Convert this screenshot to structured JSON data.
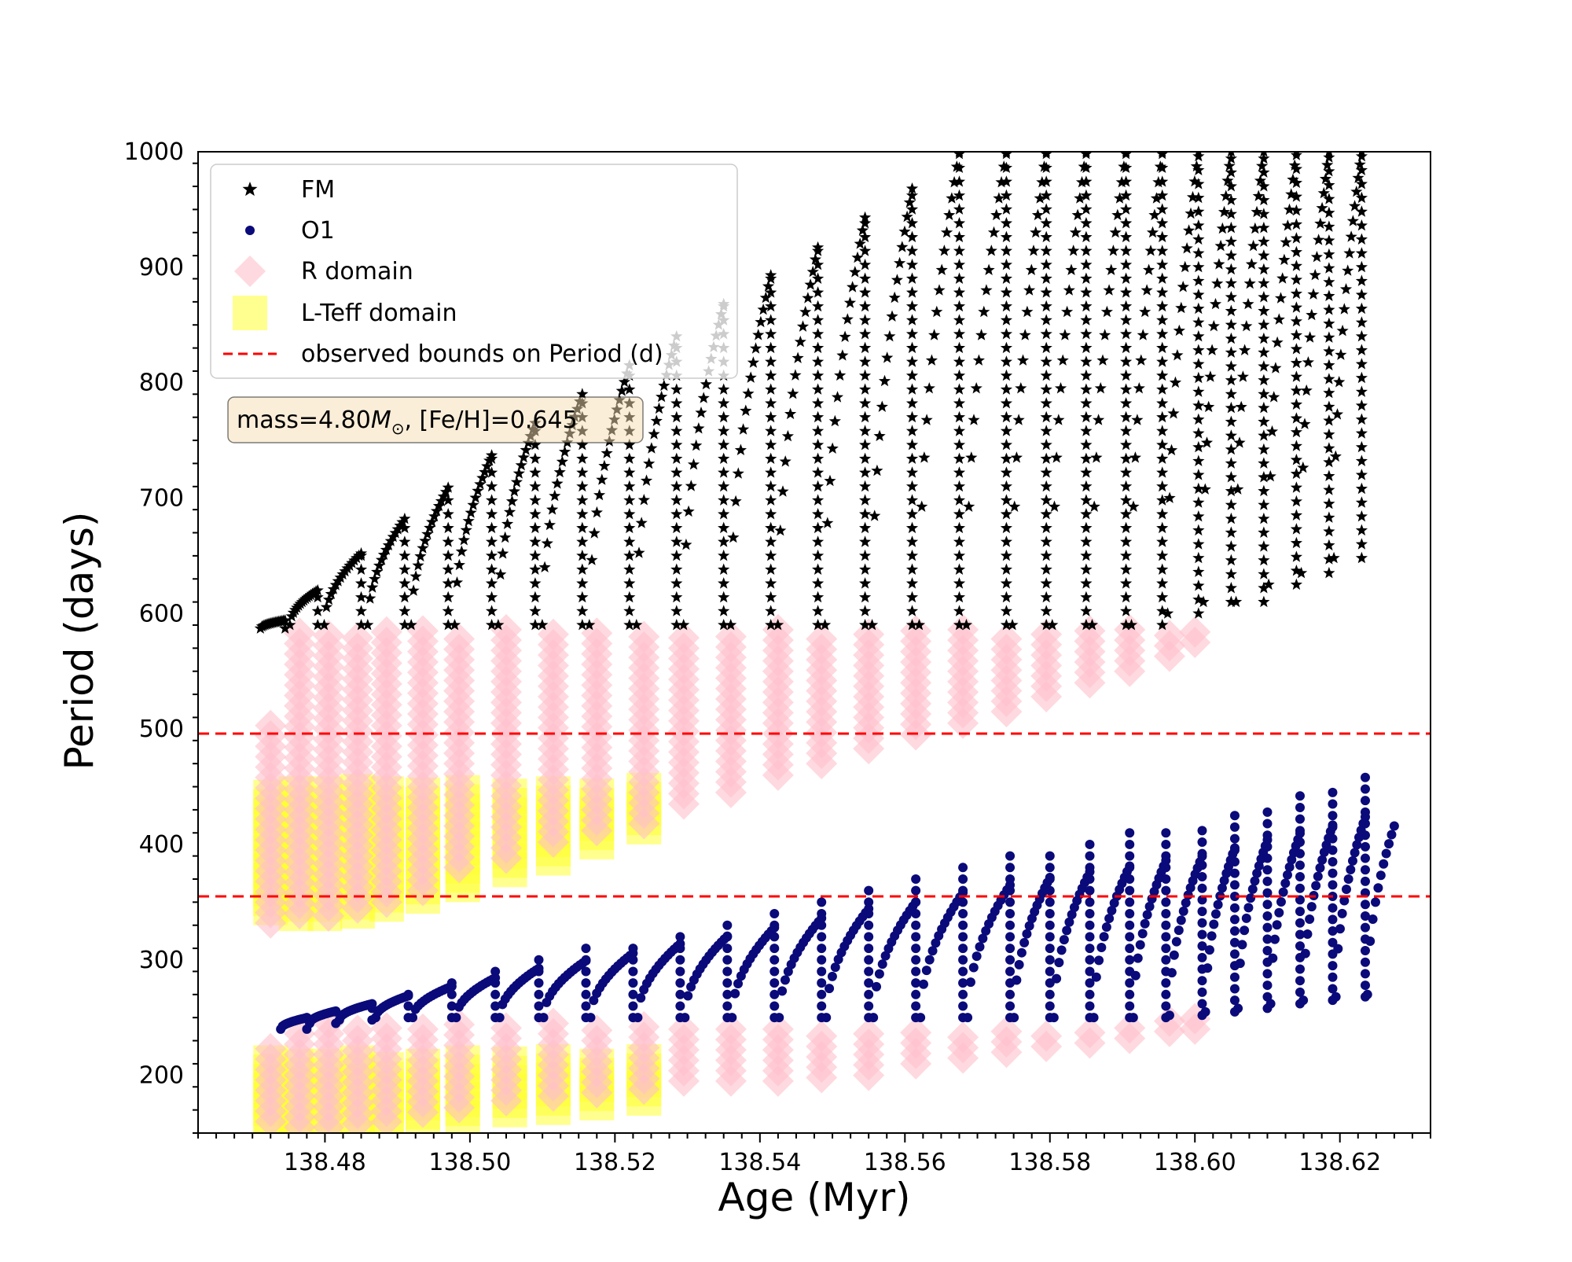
{
  "chart_data": {
    "type": "scatter",
    "title": "",
    "xlabel": "Age (Myr)",
    "ylabel": "Period (days)",
    "xlim": [
      138.4625,
      138.6325
    ],
    "ylim": [
      150,
      1000
    ],
    "xticks": [
      "138.48",
      "138.50",
      "138.52",
      "138.54",
      "138.56",
      "138.58",
      "138.60",
      "138.62"
    ],
    "yticks": [
      "200",
      "300",
      "400",
      "500",
      "600",
      "700",
      "800",
      "900",
      "1000"
    ],
    "grid": false,
    "legend": {
      "placement": "top-left",
      "entries": [
        {
          "label": "FM",
          "marker": "star",
          "color": "#000000"
        },
        {
          "label": "O1",
          "marker": "circle",
          "color": "#0a0a7a"
        },
        {
          "label": "R domain",
          "marker": "diamond",
          "color": "#ffc0cb"
        },
        {
          "label": "L-Teff domain",
          "marker": "square",
          "color": "#ffff33"
        },
        {
          "label": "observed bounds on Period (d)",
          "marker": "dashed-line",
          "color": "#ff0000"
        }
      ]
    },
    "annotation": {
      "text_before": "mass=4.80",
      "symbol": "M",
      "subscript": "⊙",
      "text_after": ", [Fe/H]=0.645"
    },
    "observed_bounds": [
      355,
      496
    ],
    "series": [
      {
        "name": "FM",
        "color": "#000000",
        "pulses": [
          {
            "age": 138.4745,
            "low": 587,
            "high": 594
          },
          {
            "age": 138.479,
            "low": 590,
            "high": 620
          },
          {
            "age": 138.485,
            "low": 590,
            "high": 652
          },
          {
            "age": 138.491,
            "low": 590,
            "high": 682
          },
          {
            "age": 138.497,
            "low": 590,
            "high": 709
          },
          {
            "age": 138.503,
            "low": 590,
            "high": 737
          },
          {
            "age": 138.509,
            "low": 590,
            "high": 765
          },
          {
            "age": 138.5155,
            "low": 590,
            "high": 790
          },
          {
            "age": 138.522,
            "low": 590,
            "high": 815
          },
          {
            "age": 138.5285,
            "low": 590,
            "high": 840
          },
          {
            "age": 138.535,
            "low": 590,
            "high": 868
          },
          {
            "age": 138.5415,
            "low": 590,
            "high": 893
          },
          {
            "age": 138.548,
            "low": 590,
            "high": 917
          },
          {
            "age": 138.5545,
            "low": 590,
            "high": 943
          },
          {
            "age": 138.561,
            "low": 590,
            "high": 968
          },
          {
            "age": 138.5675,
            "low": 590,
            "high": 1000
          },
          {
            "age": 138.574,
            "low": 590,
            "high": 1000
          },
          {
            "age": 138.5795,
            "low": 590,
            "high": 1000
          },
          {
            "age": 138.585,
            "low": 590,
            "high": 1000
          },
          {
            "age": 138.5905,
            "low": 590,
            "high": 1000
          },
          {
            "age": 138.5955,
            "low": 590,
            "high": 1000
          },
          {
            "age": 138.6005,
            "low": 600,
            "high": 1000
          },
          {
            "age": 138.605,
            "low": 610,
            "high": 1000
          },
          {
            "age": 138.6095,
            "low": 610,
            "high": 1000
          },
          {
            "age": 138.614,
            "low": 625,
            "high": 1000
          },
          {
            "age": 138.6185,
            "low": 635,
            "high": 1000
          },
          {
            "age": 138.623,
            "low": 648,
            "high": 1000
          }
        ]
      },
      {
        "name": "O1",
        "color": "#0a0a7a",
        "pulses": [
          {
            "age": 138.4775,
            "low": 240,
            "high": 252
          },
          {
            "age": 138.4815,
            "low": 245,
            "high": 258
          },
          {
            "age": 138.4865,
            "low": 248,
            "high": 265
          },
          {
            "age": 138.4915,
            "low": 250,
            "high": 273
          },
          {
            "age": 138.4975,
            "low": 250,
            "high": 283
          },
          {
            "age": 138.5035,
            "low": 250,
            "high": 292
          },
          {
            "age": 138.5095,
            "low": 250,
            "high": 302
          },
          {
            "age": 138.516,
            "low": 250,
            "high": 310
          },
          {
            "age": 138.5225,
            "low": 250,
            "high": 318
          },
          {
            "age": 138.529,
            "low": 250,
            "high": 328
          },
          {
            "age": 138.5355,
            "low": 250,
            "high": 336
          },
          {
            "age": 138.542,
            "low": 250,
            "high": 345
          },
          {
            "age": 138.5485,
            "low": 250,
            "high": 355
          },
          {
            "age": 138.555,
            "low": 250,
            "high": 365
          },
          {
            "age": 138.5615,
            "low": 250,
            "high": 372
          },
          {
            "age": 138.568,
            "low": 250,
            "high": 382
          },
          {
            "age": 138.5745,
            "low": 250,
            "high": 390
          },
          {
            "age": 138.58,
            "low": 250,
            "high": 398
          },
          {
            "age": 138.5855,
            "low": 250,
            "high": 404
          },
          {
            "age": 138.591,
            "low": 250,
            "high": 410
          },
          {
            "age": 138.596,
            "low": 250,
            "high": 416
          },
          {
            "age": 138.601,
            "low": 252,
            "high": 420
          },
          {
            "age": 138.6055,
            "low": 255,
            "high": 428
          },
          {
            "age": 138.61,
            "low": 258,
            "high": 436
          },
          {
            "age": 138.6145,
            "low": 262,
            "high": 442
          },
          {
            "age": 138.619,
            "low": 265,
            "high": 450
          },
          {
            "age": 138.6235,
            "low": 268,
            "high": 458
          }
        ],
        "tail": [
          {
            "age": 138.6238,
            "period": 270
          },
          {
            "age": 138.6275,
            "period": 416
          }
        ]
      },
      {
        "name": "R domain",
        "color": "#ffc0cb",
        "upper_band": [
          {
            "age": 138.4725,
            "low": 332,
            "high": 510
          },
          {
            "age": 138.4765,
            "low": 340,
            "high": 585
          },
          {
            "age": 138.4805,
            "low": 338,
            "high": 587
          },
          {
            "age": 138.4845,
            "low": 345,
            "high": 586
          },
          {
            "age": 138.4885,
            "low": 350,
            "high": 586
          },
          {
            "age": 138.4935,
            "low": 360,
            "high": 586
          },
          {
            "age": 138.4985,
            "low": 380,
            "high": 586
          },
          {
            "age": 138.505,
            "low": 388,
            "high": 586
          },
          {
            "age": 138.5115,
            "low": 402,
            "high": 586
          },
          {
            "age": 138.5175,
            "low": 412,
            "high": 586
          },
          {
            "age": 138.524,
            "low": 418,
            "high": 586
          },
          {
            "age": 138.5295,
            "low": 435,
            "high": 586
          },
          {
            "age": 138.536,
            "low": 445,
            "high": 586
          },
          {
            "age": 138.5425,
            "low": 460,
            "high": 586
          },
          {
            "age": 138.5485,
            "low": 470,
            "high": 586
          },
          {
            "age": 138.555,
            "low": 483,
            "high": 586
          },
          {
            "age": 138.5615,
            "low": 495,
            "high": 586
          },
          {
            "age": 138.568,
            "low": 505,
            "high": 586
          },
          {
            "age": 138.574,
            "low": 515,
            "high": 586
          },
          {
            "age": 138.5795,
            "low": 528,
            "high": 586
          },
          {
            "age": 138.5855,
            "low": 540,
            "high": 586
          },
          {
            "age": 138.591,
            "low": 550,
            "high": 586
          },
          {
            "age": 138.5965,
            "low": 563,
            "high": 586
          },
          {
            "age": 138.6,
            "low": 575,
            "high": 588
          }
        ],
        "lower_band": [
          {
            "age": 138.4725,
            "low": 160,
            "high": 230
          },
          {
            "age": 138.4765,
            "low": 155,
            "high": 244
          },
          {
            "age": 138.4805,
            "low": 155,
            "high": 245
          },
          {
            "age": 138.4845,
            "low": 158,
            "high": 245
          },
          {
            "age": 138.4885,
            "low": 160,
            "high": 245
          },
          {
            "age": 138.4935,
            "low": 168,
            "high": 245
          },
          {
            "age": 138.4985,
            "low": 172,
            "high": 245
          },
          {
            "age": 138.505,
            "low": 178,
            "high": 245
          },
          {
            "age": 138.5115,
            "low": 182,
            "high": 245
          },
          {
            "age": 138.5175,
            "low": 185,
            "high": 245
          },
          {
            "age": 138.524,
            "low": 188,
            "high": 245
          },
          {
            "age": 138.5295,
            "low": 195,
            "high": 244
          },
          {
            "age": 138.536,
            "low": 195,
            "high": 243
          },
          {
            "age": 138.5425,
            "low": 195,
            "high": 242
          },
          {
            "age": 138.5485,
            "low": 198,
            "high": 242
          },
          {
            "age": 138.555,
            "low": 200,
            "high": 241
          },
          {
            "age": 138.5615,
            "low": 210,
            "high": 240
          },
          {
            "age": 138.568,
            "low": 215,
            "high": 240
          },
          {
            "age": 138.574,
            "low": 220,
            "high": 240
          },
          {
            "age": 138.5795,
            "low": 225,
            "high": 240
          },
          {
            "age": 138.5855,
            "low": 228,
            "high": 240
          },
          {
            "age": 138.591,
            "low": 232,
            "high": 242
          },
          {
            "age": 138.5965,
            "low": 238,
            "high": 250
          },
          {
            "age": 138.6,
            "low": 240,
            "high": 252
          }
        ]
      },
      {
        "name": "L-Teff domain",
        "color": "#ffff33",
        "upper_band": [
          {
            "age": 138.4725,
            "low": 345,
            "high": 445
          },
          {
            "age": 138.476,
            "low": 340,
            "high": 448
          },
          {
            "age": 138.48,
            "low": 340,
            "high": 448
          },
          {
            "age": 138.4845,
            "low": 342,
            "high": 448
          },
          {
            "age": 138.4885,
            "low": 348,
            "high": 448
          },
          {
            "age": 138.4935,
            "low": 355,
            "high": 448
          },
          {
            "age": 138.499,
            "low": 365,
            "high": 448
          },
          {
            "age": 138.5055,
            "low": 378,
            "high": 448
          },
          {
            "age": 138.5115,
            "low": 388,
            "high": 448
          },
          {
            "age": 138.5175,
            "low": 402,
            "high": 448
          },
          {
            "age": 138.524,
            "low": 415,
            "high": 448
          }
        ],
        "lower_band": [
          {
            "age": 138.4725,
            "low": 155,
            "high": 212
          },
          {
            "age": 138.476,
            "low": 152,
            "high": 212
          },
          {
            "age": 138.48,
            "low": 152,
            "high": 212
          },
          {
            "age": 138.4845,
            "low": 155,
            "high": 212
          },
          {
            "age": 138.4885,
            "low": 157,
            "high": 212
          },
          {
            "age": 138.4935,
            "low": 160,
            "high": 212
          },
          {
            "age": 138.499,
            "low": 163,
            "high": 212
          },
          {
            "age": 138.5055,
            "low": 170,
            "high": 212
          },
          {
            "age": 138.5115,
            "low": 172,
            "high": 212
          },
          {
            "age": 138.5175,
            "low": 176,
            "high": 212
          },
          {
            "age": 138.524,
            "low": 180,
            "high": 212
          }
        ]
      }
    ]
  }
}
